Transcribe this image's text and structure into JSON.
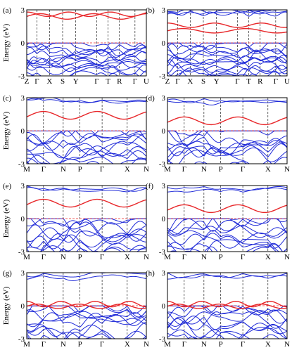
{
  "chart_data": [
    {
      "panel": "(a)",
      "type": "line",
      "ylabel": "Energy (eV)",
      "ylim": [
        -3,
        3
      ],
      "yticks": [
        "3",
        "0",
        "-3"
      ],
      "kpoints": [
        "Z",
        "Γ",
        "X",
        "S",
        "Y",
        "Γ",
        "T",
        "R",
        "Γ",
        "U"
      ],
      "fermi_level": 0,
      "series": [
        {
          "role": "conduction",
          "color": "#e8272a"
        },
        {
          "role": "valence",
          "color": "#1f2ad8"
        }
      ]
    },
    {
      "panel": "(b)",
      "type": "line",
      "ylim": [
        -3,
        3
      ],
      "yticks": [
        "3",
        "0",
        "-3"
      ],
      "kpoints": [
        "Z",
        "Γ",
        "X",
        "S",
        "Y",
        "Γ",
        "T",
        "R",
        "Γ",
        "U"
      ],
      "fermi_level": 0,
      "series": [
        {
          "role": "conduction",
          "color": "#e8272a"
        },
        {
          "role": "valence",
          "color": "#1f2ad8"
        }
      ]
    },
    {
      "panel": "(c)",
      "type": "line",
      "ylabel": "Energy (eV)",
      "ylim": [
        -3,
        3
      ],
      "yticks": [
        "3",
        "0",
        "-3"
      ],
      "kpoints": [
        "M",
        "Γ",
        "N",
        "P",
        "Γ",
        "X",
        "N"
      ],
      "fermi_level": 0,
      "series": [
        {
          "role": "conduction",
          "color": "#e8272a"
        },
        {
          "role": "valence",
          "color": "#1f2ad8"
        }
      ]
    },
    {
      "panel": "(d)",
      "type": "line",
      "ylim": [
        -3,
        3
      ],
      "yticks": [
        "3",
        "0",
        "-3"
      ],
      "kpoints": [
        "M",
        "Γ",
        "N",
        "P",
        "Γ",
        "X",
        "N"
      ],
      "fermi_level": 0,
      "series": [
        {
          "role": "conduction",
          "color": "#e8272a"
        },
        {
          "role": "valence",
          "color": "#1f2ad8"
        }
      ]
    },
    {
      "panel": "(e)",
      "type": "line",
      "ylabel": "Energy (eV)",
      "ylim": [
        -3,
        3
      ],
      "yticks": [
        "3",
        "0",
        "-3"
      ],
      "kpoints": [
        "M",
        "Γ",
        "N",
        "P",
        "Γ",
        "X",
        "N"
      ],
      "fermi_level": 0,
      "series": [
        {
          "role": "conduction",
          "color": "#e8272a"
        },
        {
          "role": "valence",
          "color": "#1f2ad8"
        }
      ]
    },
    {
      "panel": "(f)",
      "type": "line",
      "ylim": [
        -3,
        3
      ],
      "yticks": [
        "3",
        "0",
        "-3"
      ],
      "kpoints": [
        "M",
        "Γ",
        "N",
        "P",
        "Γ",
        "X",
        "N"
      ],
      "fermi_level": 0,
      "series": [
        {
          "role": "conduction",
          "color": "#e8272a"
        },
        {
          "role": "valence",
          "color": "#1f2ad8"
        }
      ]
    },
    {
      "panel": "(g)",
      "type": "line",
      "ylabel": "Energy (eV)",
      "ylim": [
        -3,
        3
      ],
      "yticks": [
        "3",
        "0",
        "-3"
      ],
      "kpoints": [
        "M",
        "Γ",
        "N",
        "P",
        "Γ",
        "X",
        "N"
      ],
      "fermi_level": 0,
      "series": [
        {
          "role": "crossing",
          "color": "#e8272a"
        },
        {
          "role": "valence",
          "color": "#1f2ad8"
        }
      ]
    },
    {
      "panel": "(h)",
      "type": "line",
      "ylim": [
        -3,
        3
      ],
      "yticks": [
        "3",
        "0",
        "-3"
      ],
      "kpoints": [
        "M",
        "Γ",
        "N",
        "P",
        "Γ",
        "X",
        "N"
      ],
      "fermi_level": 0,
      "series": [
        {
          "role": "crossing",
          "color": "#e8272a"
        },
        {
          "role": "valence",
          "color": "#1f2ad8"
        }
      ]
    }
  ],
  "colors": {
    "band_blue": "#1f2ad8",
    "band_red": "#e8272a",
    "fermi_line": "#e8272a",
    "axis": "#000000",
    "kpoint_line": "#000000"
  }
}
